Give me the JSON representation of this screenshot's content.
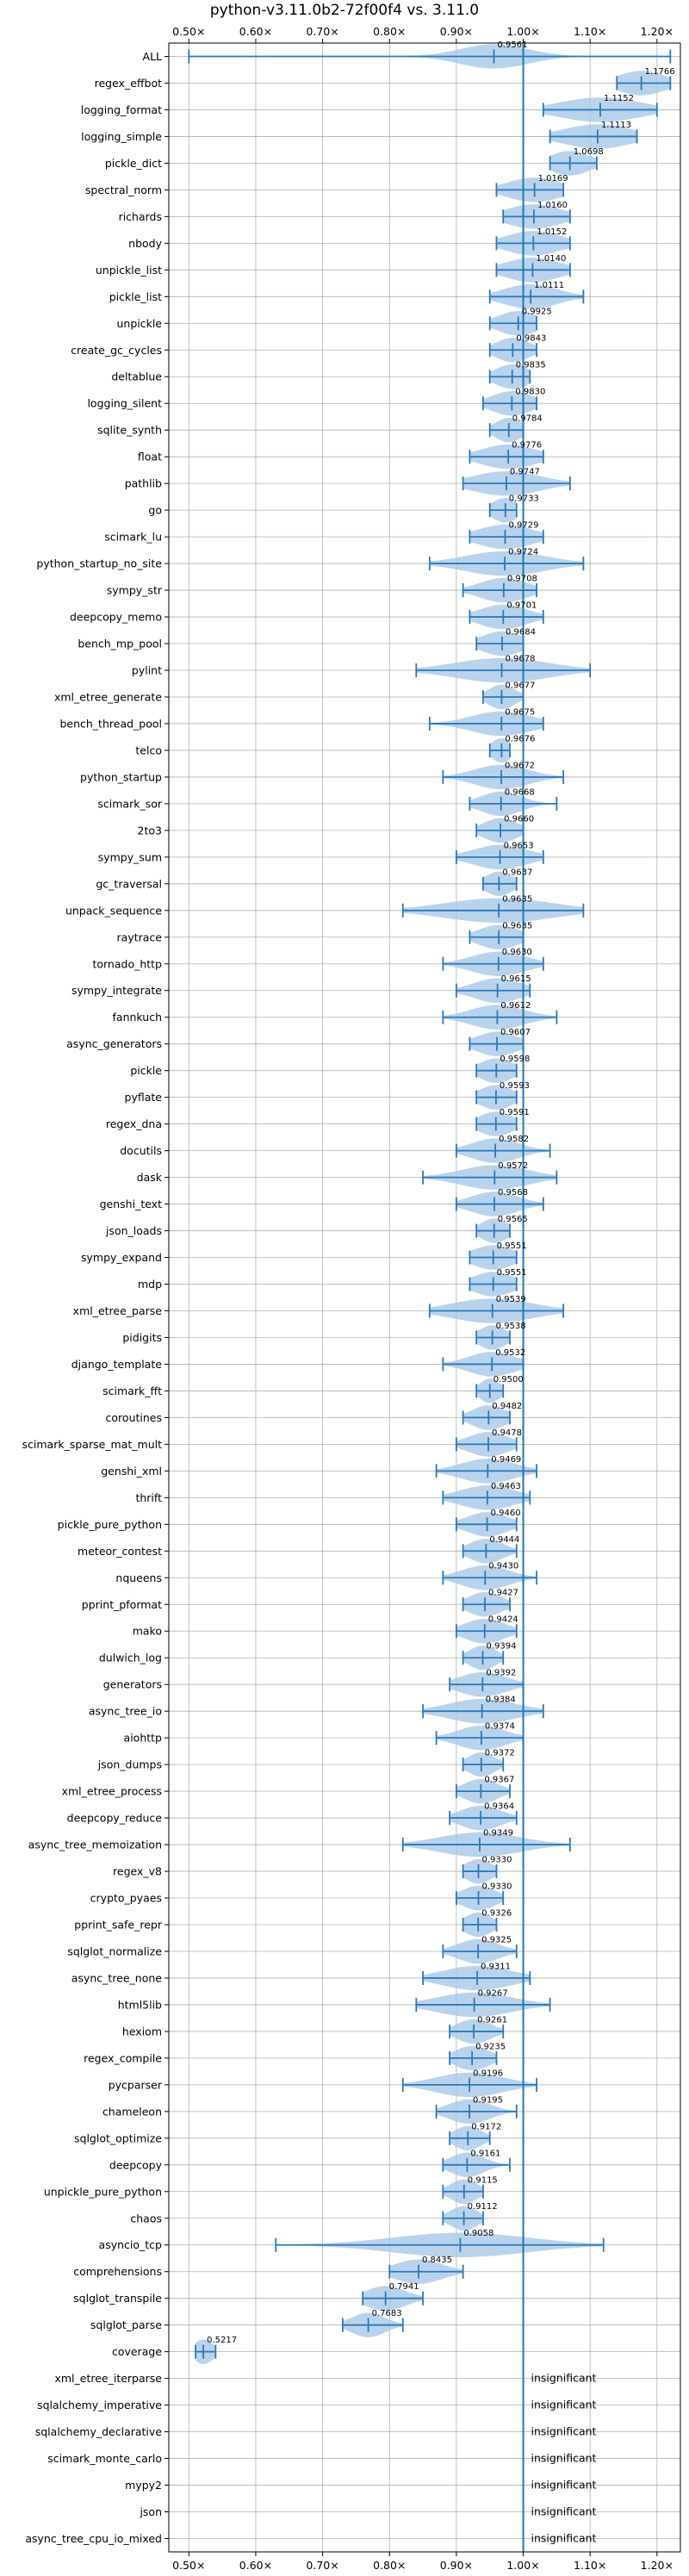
{
  "chart_data": {
    "type": "violin",
    "title": "python-v3.11.0b2-72f00f4 vs. 3.11.0",
    "xlim": [
      0.47,
      1.235
    ],
    "x_ticks": [
      0.5,
      0.6,
      0.7,
      0.8,
      0.9,
      1.0,
      1.1,
      1.2
    ],
    "x_tick_labels": [
      "0.50×",
      "0.60×",
      "0.70×",
      "0.80×",
      "0.90×",
      "1.00×",
      "1.10×",
      "1.20×"
    ],
    "reference_line": 1.0,
    "grid": true,
    "colors": {
      "violin": "#a9c8e8",
      "whisker": "#2a7ab8",
      "reference": "#1f77b4",
      "grid": "#b0b0b0"
    },
    "benchmarks": [
      {
        "name": "ALL",
        "value": 0.9561,
        "label": "0.9561",
        "lo": 0.5,
        "hi": 1.22,
        "spread": 0.05
      },
      {
        "name": "regex_effbot",
        "value": 1.1766,
        "label": "1.1766",
        "lo": 1.14,
        "hi": 1.22,
        "spread": 0.035
      },
      {
        "name": "logging_format",
        "value": 1.1152,
        "label": "1.1152",
        "lo": 1.03,
        "hi": 1.2,
        "spread": 0.06
      },
      {
        "name": "logging_simple",
        "value": 1.1113,
        "label": "1.1113",
        "lo": 1.04,
        "hi": 1.17,
        "spread": 0.05
      },
      {
        "name": "pickle_dict",
        "value": 1.0698,
        "label": "1.0698",
        "lo": 1.04,
        "hi": 1.11,
        "spread": 0.03
      },
      {
        "name": "spectral_norm",
        "value": 1.0169,
        "label": "1.0169",
        "lo": 0.96,
        "hi": 1.06,
        "spread": 0.04
      },
      {
        "name": "richards",
        "value": 1.016,
        "label": "1.0160",
        "lo": 0.97,
        "hi": 1.07,
        "spread": 0.04
      },
      {
        "name": "nbody",
        "value": 1.0152,
        "label": "1.0152",
        "lo": 0.96,
        "hi": 1.07,
        "spread": 0.04
      },
      {
        "name": "unpickle_list",
        "value": 1.014,
        "label": "1.0140",
        "lo": 0.96,
        "hi": 1.07,
        "spread": 0.04
      },
      {
        "name": "pickle_list",
        "value": 1.0111,
        "label": "1.0111",
        "lo": 0.95,
        "hi": 1.09,
        "spread": 0.04
      },
      {
        "name": "unpickle",
        "value": 0.9925,
        "label": "0.9925",
        "lo": 0.95,
        "hi": 1.02,
        "spread": 0.03
      },
      {
        "name": "create_gc_cycles",
        "value": 0.9843,
        "label": "0.9843",
        "lo": 0.95,
        "hi": 1.02,
        "spread": 0.025
      },
      {
        "name": "deltablue",
        "value": 0.9835,
        "label": "0.9835",
        "lo": 0.95,
        "hi": 1.01,
        "spread": 0.025
      },
      {
        "name": "logging_silent",
        "value": 0.983,
        "label": "0.9830",
        "lo": 0.94,
        "hi": 1.02,
        "spread": 0.03
      },
      {
        "name": "sqlite_synth",
        "value": 0.9784,
        "label": "0.9784",
        "lo": 0.95,
        "hi": 1.0,
        "spread": 0.02
      },
      {
        "name": "float",
        "value": 0.9776,
        "label": "0.9776",
        "lo": 0.92,
        "hi": 1.03,
        "spread": 0.04
      },
      {
        "name": "pathlib",
        "value": 0.9747,
        "label": "0.9747",
        "lo": 0.91,
        "hi": 1.07,
        "spread": 0.05
      },
      {
        "name": "go",
        "value": 0.9733,
        "label": "0.9733",
        "lo": 0.95,
        "hi": 0.99,
        "spread": 0.02
      },
      {
        "name": "scimark_lu",
        "value": 0.9729,
        "label": "0.9729",
        "lo": 0.92,
        "hi": 1.03,
        "spread": 0.04
      },
      {
        "name": "python_startup_no_site",
        "value": 0.9724,
        "label": "0.9724",
        "lo": 0.86,
        "hi": 1.09,
        "spread": 0.06
      },
      {
        "name": "sympy_str",
        "value": 0.9708,
        "label": "0.9708",
        "lo": 0.91,
        "hi": 1.02,
        "spread": 0.035
      },
      {
        "name": "deepcopy_memo",
        "value": 0.9701,
        "label": "0.9701",
        "lo": 0.92,
        "hi": 1.03,
        "spread": 0.035
      },
      {
        "name": "bench_mp_pool",
        "value": 0.9684,
        "label": "0.9684",
        "lo": 0.93,
        "hi": 1.0,
        "spread": 0.03
      },
      {
        "name": "pylint",
        "value": 0.9678,
        "label": "0.9678",
        "lo": 0.84,
        "hi": 1.1,
        "spread": 0.07
      },
      {
        "name": "xml_etree_generate",
        "value": 0.9677,
        "label": "0.9677",
        "lo": 0.94,
        "hi": 1.0,
        "spread": 0.02
      },
      {
        "name": "bench_thread_pool",
        "value": 0.9675,
        "label": "0.9675",
        "lo": 0.86,
        "hi": 1.03,
        "spread": 0.045
      },
      {
        "name": "telco",
        "value": 0.9676,
        "label": "0.9676",
        "lo": 0.95,
        "hi": 0.98,
        "spread": 0.015
      },
      {
        "name": "python_startup",
        "value": 0.9672,
        "label": "0.9672",
        "lo": 0.88,
        "hi": 1.06,
        "spread": 0.04
      },
      {
        "name": "scimark_sor",
        "value": 0.9668,
        "label": "0.9668",
        "lo": 0.92,
        "hi": 1.05,
        "spread": 0.03
      },
      {
        "name": "2to3",
        "value": 0.966,
        "label": "0.9660",
        "lo": 0.93,
        "hi": 1.0,
        "spread": 0.025
      },
      {
        "name": "sympy_sum",
        "value": 0.9653,
        "label": "0.9653",
        "lo": 0.9,
        "hi": 1.03,
        "spread": 0.04
      },
      {
        "name": "gc_traversal",
        "value": 0.9637,
        "label": "0.9637",
        "lo": 0.94,
        "hi": 0.99,
        "spread": 0.02
      },
      {
        "name": "unpack_sequence",
        "value": 0.9635,
        "label": "0.9635",
        "lo": 0.82,
        "hi": 1.09,
        "spread": 0.08
      },
      {
        "name": "raytrace",
        "value": 0.9635,
        "label": "0.9635",
        "lo": 0.92,
        "hi": 1.0,
        "spread": 0.03
      },
      {
        "name": "tornado_http",
        "value": 0.963,
        "label": "0.9630",
        "lo": 0.88,
        "hi": 1.03,
        "spread": 0.04
      },
      {
        "name": "sympy_integrate",
        "value": 0.9615,
        "label": "0.9615",
        "lo": 0.9,
        "hi": 1.01,
        "spread": 0.035
      },
      {
        "name": "fannkuch",
        "value": 0.9612,
        "label": "0.9612",
        "lo": 0.88,
        "hi": 1.05,
        "spread": 0.04
      },
      {
        "name": "async_generators",
        "value": 0.9607,
        "label": "0.9607",
        "lo": 0.92,
        "hi": 1.0,
        "spread": 0.03
      },
      {
        "name": "pickle",
        "value": 0.9598,
        "label": "0.9598",
        "lo": 0.93,
        "hi": 0.99,
        "spread": 0.025
      },
      {
        "name": "pyflate",
        "value": 0.9593,
        "label": "0.9593",
        "lo": 0.93,
        "hi": 0.99,
        "spread": 0.025
      },
      {
        "name": "regex_dna",
        "value": 0.9591,
        "label": "0.9591",
        "lo": 0.93,
        "hi": 0.99,
        "spread": 0.025
      },
      {
        "name": "docutils",
        "value": 0.9582,
        "label": "0.9582",
        "lo": 0.9,
        "hi": 1.04,
        "spread": 0.035
      },
      {
        "name": "dask",
        "value": 0.9572,
        "label": "0.9572",
        "lo": 0.85,
        "hi": 1.05,
        "spread": 0.05
      },
      {
        "name": "genshi_text",
        "value": 0.9568,
        "label": "0.9568",
        "lo": 0.9,
        "hi": 1.03,
        "spread": 0.035
      },
      {
        "name": "json_loads",
        "value": 0.9565,
        "label": "0.9565",
        "lo": 0.93,
        "hi": 0.98,
        "spread": 0.02
      },
      {
        "name": "sympy_expand",
        "value": 0.9551,
        "label": "0.9551",
        "lo": 0.92,
        "hi": 0.99,
        "spread": 0.03
      },
      {
        "name": "mdp",
        "value": 0.9551,
        "label": "0.9551",
        "lo": 0.92,
        "hi": 0.99,
        "spread": 0.03
      },
      {
        "name": "xml_etree_parse",
        "value": 0.9539,
        "label": "0.9539",
        "lo": 0.86,
        "hi": 1.06,
        "spread": 0.06
      },
      {
        "name": "pidigits",
        "value": 0.9538,
        "label": "0.9538",
        "lo": 0.93,
        "hi": 0.98,
        "spread": 0.02
      },
      {
        "name": "django_template",
        "value": 0.9532,
        "label": "0.9532",
        "lo": 0.88,
        "hi": 1.0,
        "spread": 0.035
      },
      {
        "name": "scimark_fft",
        "value": 0.95,
        "label": "0.9500",
        "lo": 0.93,
        "hi": 0.97,
        "spread": 0.015
      },
      {
        "name": "coroutines",
        "value": 0.9482,
        "label": "0.9482",
        "lo": 0.91,
        "hi": 0.98,
        "spread": 0.025
      },
      {
        "name": "scimark_sparse_mat_mult",
        "value": 0.9478,
        "label": "0.9478",
        "lo": 0.9,
        "hi": 0.99,
        "spread": 0.03
      },
      {
        "name": "genshi_xml",
        "value": 0.9469,
        "label": "0.9469",
        "lo": 0.87,
        "hi": 1.02,
        "spread": 0.04
      },
      {
        "name": "thrift",
        "value": 0.9463,
        "label": "0.9463",
        "lo": 0.88,
        "hi": 1.01,
        "spread": 0.04
      },
      {
        "name": "pickle_pure_python",
        "value": 0.946,
        "label": "0.9460",
        "lo": 0.9,
        "hi": 0.99,
        "spread": 0.03
      },
      {
        "name": "meteor_contest",
        "value": 0.9444,
        "label": "0.9444",
        "lo": 0.91,
        "hi": 0.99,
        "spread": 0.025
      },
      {
        "name": "nqueens",
        "value": 0.943,
        "label": "0.9430",
        "lo": 0.88,
        "hi": 1.02,
        "spread": 0.035
      },
      {
        "name": "pprint_pformat",
        "value": 0.9427,
        "label": "0.9427",
        "lo": 0.91,
        "hi": 0.98,
        "spread": 0.025
      },
      {
        "name": "mako",
        "value": 0.9424,
        "label": "0.9424",
        "lo": 0.9,
        "hi": 0.99,
        "spread": 0.03
      },
      {
        "name": "dulwich_log",
        "value": 0.9394,
        "label": "0.9394",
        "lo": 0.91,
        "hi": 0.97,
        "spread": 0.02
      },
      {
        "name": "generators",
        "value": 0.9392,
        "label": "0.9392",
        "lo": 0.89,
        "hi": 1.0,
        "spread": 0.035
      },
      {
        "name": "async_tree_io",
        "value": 0.9384,
        "label": "0.9384",
        "lo": 0.85,
        "hi": 1.03,
        "spread": 0.05
      },
      {
        "name": "aiohttp",
        "value": 0.9374,
        "label": "0.9374",
        "lo": 0.87,
        "hi": 1.0,
        "spread": 0.035
      },
      {
        "name": "json_dumps",
        "value": 0.9372,
        "label": "0.9372",
        "lo": 0.91,
        "hi": 0.97,
        "spread": 0.02
      },
      {
        "name": "xml_etree_process",
        "value": 0.9367,
        "label": "0.9367",
        "lo": 0.9,
        "hi": 0.98,
        "spread": 0.025
      },
      {
        "name": "deepcopy_reduce",
        "value": 0.9364,
        "label": "0.9364",
        "lo": 0.89,
        "hi": 0.99,
        "spread": 0.03
      },
      {
        "name": "async_tree_memoization",
        "value": 0.9349,
        "label": "0.9349",
        "lo": 0.82,
        "hi": 1.07,
        "spread": 0.06
      },
      {
        "name": "regex_v8",
        "value": 0.933,
        "label": "0.9330",
        "lo": 0.91,
        "hi": 0.96,
        "spread": 0.02
      },
      {
        "name": "crypto_pyaes",
        "value": 0.933,
        "label": "0.9330",
        "lo": 0.9,
        "hi": 0.97,
        "spread": 0.025
      },
      {
        "name": "pprint_safe_repr",
        "value": 0.9326,
        "label": "0.9326",
        "lo": 0.91,
        "hi": 0.96,
        "spread": 0.02
      },
      {
        "name": "sqlglot_normalize",
        "value": 0.9325,
        "label": "0.9325",
        "lo": 0.88,
        "hi": 0.99,
        "spread": 0.03
      },
      {
        "name": "async_tree_none",
        "value": 0.9311,
        "label": "0.9311",
        "lo": 0.85,
        "hi": 1.01,
        "spread": 0.05
      },
      {
        "name": "html5lib",
        "value": 0.9267,
        "label": "0.9267",
        "lo": 0.84,
        "hi": 1.04,
        "spread": 0.055
      },
      {
        "name": "hexiom",
        "value": 0.9261,
        "label": "0.9261",
        "lo": 0.89,
        "hi": 0.97,
        "spread": 0.025
      },
      {
        "name": "regex_compile",
        "value": 0.9235,
        "label": "0.9235",
        "lo": 0.89,
        "hi": 0.96,
        "spread": 0.025
      },
      {
        "name": "pycparser",
        "value": 0.9196,
        "label": "0.9196",
        "lo": 0.82,
        "hi": 1.02,
        "spread": 0.05
      },
      {
        "name": "chameleon",
        "value": 0.9195,
        "label": "0.9195",
        "lo": 0.87,
        "hi": 0.99,
        "spread": 0.03
      },
      {
        "name": "sqlglot_optimize",
        "value": 0.9172,
        "label": "0.9172",
        "lo": 0.89,
        "hi": 0.95,
        "spread": 0.02
      },
      {
        "name": "deepcopy",
        "value": 0.9161,
        "label": "0.9161",
        "lo": 0.88,
        "hi": 0.98,
        "spread": 0.025
      },
      {
        "name": "unpickle_pure_python",
        "value": 0.9115,
        "label": "0.9115",
        "lo": 0.88,
        "hi": 0.94,
        "spread": 0.02
      },
      {
        "name": "chaos",
        "value": 0.9112,
        "label": "0.9112",
        "lo": 0.88,
        "hi": 0.94,
        "spread": 0.02
      },
      {
        "name": "asyncio_tcp",
        "value": 0.9058,
        "label": "0.9058",
        "lo": 0.63,
        "hi": 1.12,
        "spread": 0.1
      },
      {
        "name": "comprehensions",
        "value": 0.8435,
        "label": "0.8435",
        "lo": 0.8,
        "hi": 0.91,
        "spread": 0.035
      },
      {
        "name": "sqlglot_transpile",
        "value": 0.7941,
        "label": "0.7941",
        "lo": 0.76,
        "hi": 0.85,
        "spread": 0.03
      },
      {
        "name": "sqlglot_parse",
        "value": 0.7683,
        "label": "0.7683",
        "lo": 0.73,
        "hi": 0.82,
        "spread": 0.025
      },
      {
        "name": "coverage",
        "value": 0.5217,
        "label": "0.5217",
        "lo": 0.51,
        "hi": 0.54,
        "spread": 0.015
      },
      {
        "name": "xml_etree_iterparse",
        "insignificant": true,
        "label": "insignificant"
      },
      {
        "name": "sqlalchemy_imperative",
        "insignificant": true,
        "label": "insignificant"
      },
      {
        "name": "sqlalchemy_declarative",
        "insignificant": true,
        "label": "insignificant"
      },
      {
        "name": "scimark_monte_carlo",
        "insignificant": true,
        "label": "insignificant"
      },
      {
        "name": "mypy2",
        "insignificant": true,
        "label": "insignificant"
      },
      {
        "name": "json",
        "insignificant": true,
        "label": "insignificant"
      },
      {
        "name": "async_tree_cpu_io_mixed",
        "insignificant": true,
        "label": "insignificant"
      }
    ]
  }
}
